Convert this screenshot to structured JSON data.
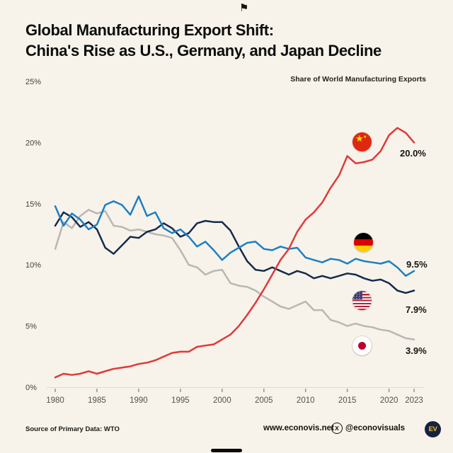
{
  "page": {
    "background": "#f7f3ea",
    "top_flag_icon": "⚑"
  },
  "header": {
    "title_line1": "Global Manufacturing Export Shift:",
    "title_line2": "China's Rise as U.S., Germany, and Japan Decline"
  },
  "chart_data": {
    "type": "line",
    "subtitle": "Share of World Manufacturing Exports",
    "x": [
      1980,
      1981,
      1982,
      1983,
      1984,
      1985,
      1986,
      1987,
      1988,
      1989,
      1990,
      1991,
      1992,
      1993,
      1994,
      1995,
      1996,
      1997,
      1998,
      1999,
      2000,
      2001,
      2002,
      2003,
      2004,
      2005,
      2006,
      2007,
      2008,
      2009,
      2010,
      2011,
      2012,
      2013,
      2014,
      2015,
      2016,
      2017,
      2018,
      2019,
      2020,
      2021,
      2022,
      2023
    ],
    "x_tick_labels": [
      "1980",
      "1985",
      "1990",
      "1995",
      "2000",
      "2005",
      "2010",
      "2015",
      "2020",
      "2023"
    ],
    "y_ticks": [
      0,
      5,
      10,
      15,
      20,
      25
    ],
    "y_tick_labels": [
      "0%",
      "5%",
      "10%",
      "15%",
      "20%",
      "25%"
    ],
    "ylim": [
      0,
      25
    ],
    "grid": false,
    "legend_position": "right-flags",
    "series": [
      {
        "name": "China",
        "color": "#e03a3c",
        "end_label": "20.0%",
        "values": [
          0.8,
          1.1,
          1.0,
          1.1,
          1.3,
          1.1,
          1.3,
          1.5,
          1.6,
          1.7,
          1.9,
          2.0,
          2.2,
          2.5,
          2.8,
          2.9,
          2.9,
          3.3,
          3.4,
          3.5,
          3.9,
          4.3,
          5.0,
          5.9,
          6.9,
          8.0,
          9.2,
          10.4,
          11.3,
          12.7,
          13.7,
          14.3,
          15.1,
          16.3,
          17.3,
          18.9,
          18.3,
          18.4,
          18.6,
          19.3,
          20.6,
          21.2,
          20.8,
          20.0
        ]
      },
      {
        "name": "Germany",
        "color": "#1d7fc4",
        "end_label": "9.5%",
        "values": [
          14.8,
          13.2,
          14.2,
          13.7,
          12.9,
          13.3,
          14.9,
          15.2,
          14.9,
          14.1,
          15.6,
          14.0,
          14.3,
          13.0,
          12.6,
          12.9,
          12.3,
          11.5,
          11.9,
          11.2,
          10.4,
          11.0,
          11.4,
          11.8,
          11.9,
          11.3,
          11.2,
          11.5,
          11.3,
          11.4,
          10.6,
          10.4,
          10.2,
          10.5,
          10.4,
          10.1,
          10.5,
          10.3,
          10.2,
          10.1,
          10.3,
          9.8,
          9.1,
          9.5
        ]
      },
      {
        "name": "United States",
        "color": "#152a4e",
        "end_label": "7.9%",
        "values": [
          13.2,
          14.3,
          13.9,
          13.1,
          13.5,
          12.9,
          11.4,
          10.9,
          11.6,
          12.3,
          12.2,
          12.7,
          12.9,
          13.4,
          13.0,
          12.3,
          12.6,
          13.4,
          13.6,
          13.5,
          13.5,
          12.8,
          11.5,
          10.3,
          9.6,
          9.5,
          9.8,
          9.5,
          9.2,
          9.5,
          9.3,
          8.9,
          9.1,
          8.9,
          9.1,
          9.3,
          9.2,
          8.9,
          8.7,
          8.8,
          8.5,
          7.9,
          7.7,
          7.9
        ]
      },
      {
        "name": "Japan",
        "color": "#b9b7b4",
        "end_label": "3.9%",
        "values": [
          11.3,
          13.5,
          13.0,
          14.0,
          14.5,
          14.2,
          14.4,
          13.2,
          13.1,
          12.8,
          12.9,
          12.7,
          12.5,
          12.4,
          12.2,
          11.2,
          10.0,
          9.8,
          9.2,
          9.5,
          9.6,
          8.5,
          8.3,
          8.2,
          7.9,
          7.4,
          7.0,
          6.6,
          6.4,
          6.7,
          7.0,
          6.3,
          6.3,
          5.5,
          5.3,
          5.0,
          5.2,
          5.0,
          4.9,
          4.7,
          4.6,
          4.3,
          4.0,
          3.9
        ]
      }
    ]
  },
  "icons": {
    "china_star": "★",
    "x_logo": "X"
  },
  "footer": {
    "source": "Source of Primary Data: WTO",
    "website": "www.econovis.net",
    "social_handle": "@econovisuals",
    "logo_text": "EV"
  }
}
